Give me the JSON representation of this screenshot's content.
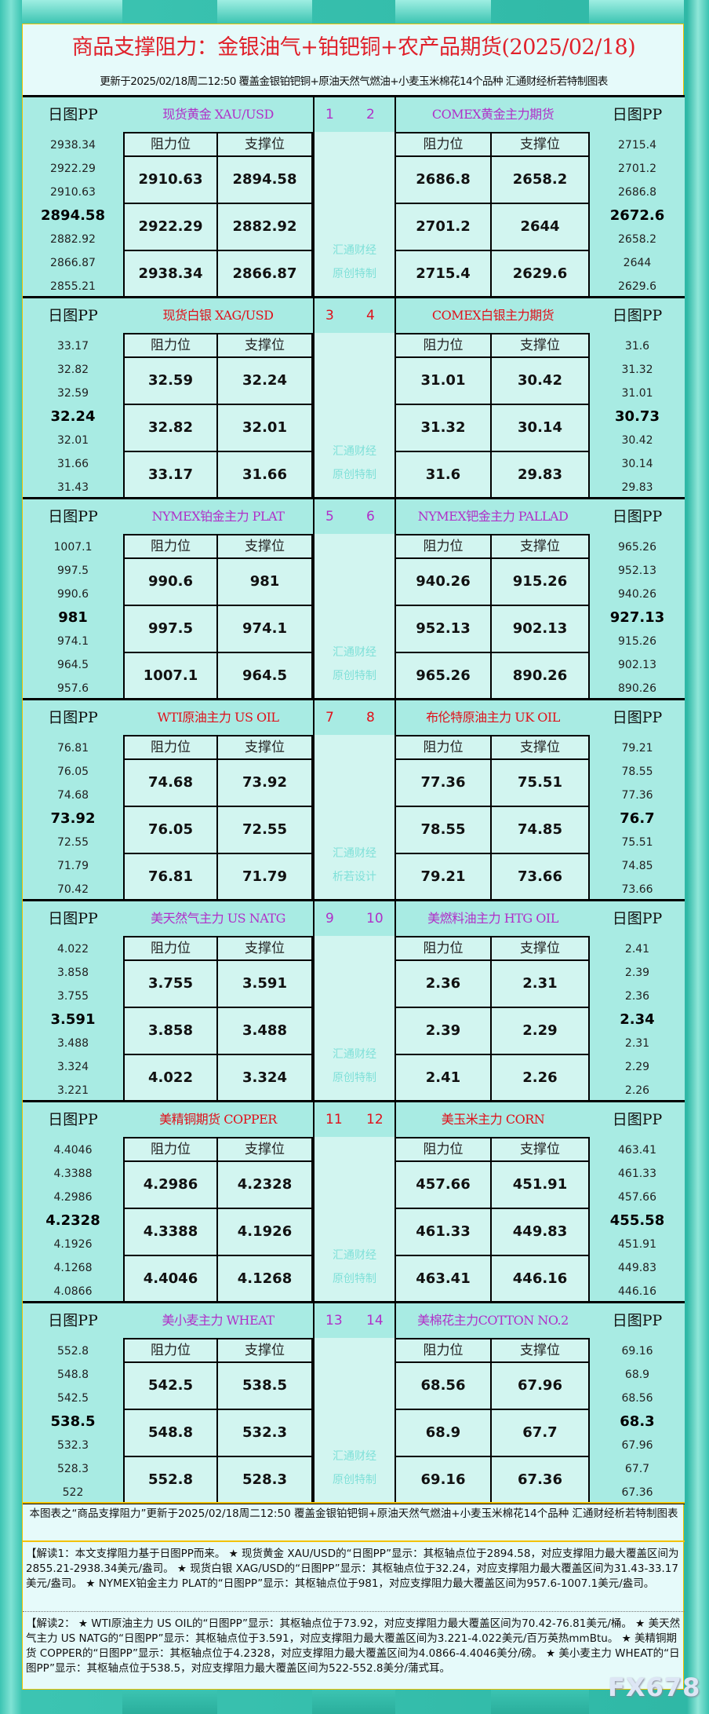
{
  "header": {
    "title": "商品支撑阻力：金银油气+铂钯铜+农产品期货(2025/02/18)",
    "subtitle": "更新于2025/02/18周二12:50  覆盖金银铂钯铜+原油天然气燃油+小麦玉米棉花14个品种  汇通财经析若特制图表"
  },
  "labels": {
    "pp": "日图PP",
    "resist": "阻力位",
    "support": "支撑位"
  },
  "colors": {
    "red": "#e0101a",
    "purple": "#b030c8",
    "watermark": "#7fe0d8"
  },
  "blocks": [
    {
      "color": "purple",
      "watermark": [
        "汇通财经",
        "原创特制"
      ],
      "left": {
        "num": "1",
        "name": "现货黄金 XAU/USD",
        "pp": [
          "2938.34",
          "2922.29",
          "2910.63",
          "2894.58",
          "2882.92",
          "2866.87",
          "2855.21"
        ],
        "rows": [
          [
            "2910.63",
            "2894.58"
          ],
          [
            "2922.29",
            "2882.92"
          ],
          [
            "2938.34",
            "2866.87"
          ]
        ]
      },
      "right": {
        "num": "2",
        "name": "COMEX黄金主力期货",
        "pp": [
          "2715.4",
          "2701.2",
          "2686.8",
          "2672.6",
          "2658.2",
          "2644",
          "2629.6"
        ],
        "rows": [
          [
            "2686.8",
            "2658.2"
          ],
          [
            "2701.2",
            "2644"
          ],
          [
            "2715.4",
            "2629.6"
          ]
        ]
      }
    },
    {
      "color": "red",
      "watermark": [
        "汇通财经",
        "原创特制"
      ],
      "left": {
        "num": "3",
        "name": "现货白银 XAG/USD",
        "pp": [
          "33.17",
          "32.82",
          "32.59",
          "32.24",
          "32.01",
          "31.66",
          "31.43"
        ],
        "rows": [
          [
            "32.59",
            "32.24"
          ],
          [
            "32.82",
            "32.01"
          ],
          [
            "33.17",
            "31.66"
          ]
        ]
      },
      "right": {
        "num": "4",
        "name": "COMEX白银主力期货",
        "pp": [
          "31.6",
          "31.32",
          "31.01",
          "30.73",
          "30.42",
          "30.14",
          "29.83"
        ],
        "rows": [
          [
            "31.01",
            "30.42"
          ],
          [
            "31.32",
            "30.14"
          ],
          [
            "31.6",
            "29.83"
          ]
        ]
      }
    },
    {
      "color": "purple",
      "watermark": [
        "汇通财经",
        "原创特制"
      ],
      "left": {
        "num": "5",
        "name": "NYMEX铂金主力 PLAT",
        "pp": [
          "1007.1",
          "997.5",
          "990.6",
          "981",
          "974.1",
          "964.5",
          "957.6"
        ],
        "rows": [
          [
            "990.6",
            "981"
          ],
          [
            "997.5",
            "974.1"
          ],
          [
            "1007.1",
            "964.5"
          ]
        ]
      },
      "right": {
        "num": "6",
        "name": "NYMEX钯金主力 PALLAD",
        "pp": [
          "965.26",
          "952.13",
          "940.26",
          "927.13",
          "915.26",
          "902.13",
          "890.26"
        ],
        "rows": [
          [
            "940.26",
            "915.26"
          ],
          [
            "952.13",
            "902.13"
          ],
          [
            "965.26",
            "890.26"
          ]
        ]
      }
    },
    {
      "color": "red",
      "watermark": [
        "汇通财经",
        "析若设计"
      ],
      "left": {
        "num": "7",
        "name": "WTI原油主力 US OIL",
        "pp": [
          "76.81",
          "76.05",
          "74.68",
          "73.92",
          "72.55",
          "71.79",
          "70.42"
        ],
        "rows": [
          [
            "74.68",
            "73.92"
          ],
          [
            "76.05",
            "72.55"
          ],
          [
            "76.81",
            "71.79"
          ]
        ]
      },
      "right": {
        "num": "8",
        "name": "布伦特原油主力 UK OIL",
        "pp": [
          "79.21",
          "78.55",
          "77.36",
          "76.7",
          "75.51",
          "74.85",
          "73.66"
        ],
        "rows": [
          [
            "77.36",
            "75.51"
          ],
          [
            "78.55",
            "74.85"
          ],
          [
            "79.21",
            "73.66"
          ]
        ]
      }
    },
    {
      "color": "purple",
      "watermark": [
        "汇通财经",
        "原创特制"
      ],
      "left": {
        "num": "9",
        "name": "美天然气主力 US NATG",
        "pp": [
          "4.022",
          "3.858",
          "3.755",
          "3.591",
          "3.488",
          "3.324",
          "3.221"
        ],
        "rows": [
          [
            "3.755",
            "3.591"
          ],
          [
            "3.858",
            "3.488"
          ],
          [
            "4.022",
            "3.324"
          ]
        ]
      },
      "right": {
        "num": "10",
        "name": "美燃料油主力 HTG OIL",
        "pp": [
          "2.41",
          "2.39",
          "2.36",
          "2.34",
          "2.31",
          "2.29",
          "2.26"
        ],
        "rows": [
          [
            "2.36",
            "2.31"
          ],
          [
            "2.39",
            "2.29"
          ],
          [
            "2.41",
            "2.26"
          ]
        ]
      }
    },
    {
      "color": "red",
      "watermark": [
        "汇通财经",
        "原创特制"
      ],
      "left": {
        "num": "11",
        "name": "美精铜期货 COPPER",
        "pp": [
          "4.4046",
          "4.3388",
          "4.2986",
          "4.2328",
          "4.1926",
          "4.1268",
          "4.0866"
        ],
        "rows": [
          [
            "4.2986",
            "4.2328"
          ],
          [
            "4.3388",
            "4.1926"
          ],
          [
            "4.4046",
            "4.1268"
          ]
        ]
      },
      "right": {
        "num": "12",
        "name": "美玉米主力 CORN",
        "pp": [
          "463.41",
          "461.33",
          "457.66",
          "455.58",
          "451.91",
          "449.83",
          "446.16"
        ],
        "rows": [
          [
            "457.66",
            "451.91"
          ],
          [
            "461.33",
            "449.83"
          ],
          [
            "463.41",
            "446.16"
          ]
        ]
      }
    },
    {
      "color": "purple",
      "watermark": [
        "汇通财经",
        "原创特制"
      ],
      "left": {
        "num": "13",
        "name": "美小麦主力 WHEAT",
        "pp": [
          "552.8",
          "548.8",
          "542.5",
          "538.5",
          "532.3",
          "528.3",
          "522"
        ],
        "rows": [
          [
            "542.5",
            "538.5"
          ],
          [
            "548.8",
            "532.3"
          ],
          [
            "552.8",
            "528.3"
          ]
        ]
      },
      "right": {
        "num": "14",
        "name": "美棉花主力COTTON NO.2",
        "pp": [
          "69.16",
          "68.9",
          "68.56",
          "68.3",
          "67.96",
          "67.7",
          "67.36"
        ],
        "rows": [
          [
            "68.56",
            "67.96"
          ],
          [
            "68.9",
            "67.7"
          ],
          [
            "69.16",
            "67.36"
          ]
        ]
      }
    }
  ],
  "footer": {
    "note": "本图表之“商品支撑阻力”更新于2025/02/18周二12:50 覆盖金银铂钯铜+原油天然气燃油+小麦玉米棉花14个品种 汇通财经析若特制图表",
    "explain1": "【解读1：本文支撑阻力基于日图PP而来。 ★ 现货黄金 XAU/USD的“日图PP”显示：其枢轴点位于2894.58，对应支撑阻力最大覆盖区间为2855.21-2938.34美元/盎司。 ★ 现货白银 XAG/USD的“日图PP”显示：其枢轴点位于32.24，对应支撑阻力最大覆盖区间为31.43-33.17美元/盎司。 ★ NYMEX铂金主力 PLAT的“日图PP”显示：其枢轴点位于981，对应支撑阻力最大覆盖区间为957.6-1007.1美元/盎司。",
    "explain2": "【解读2： ★ WTI原油主力 US OIL的“日图PP”显示：其枢轴点位于73.92，对应支撑阻力最大覆盖区间为70.42-76.81美元/桶。 ★ 美天然气主力 US NATG的“日图PP”显示：其枢轴点位于3.591，对应支撑阻力最大覆盖区间为3.221-4.022美元/百万英热mmBtu。 ★ 美精铜期货 COPPER的“日图PP”显示：其枢轴点位于4.2328，对应支撑阻力最大覆盖区间为4.0866-4.4046美分/磅。 ★ 美小麦主力 WHEAT的“日图PP”显示：其枢轴点位于538.5，对应支撑阻力最大覆盖区间为522-552.8美分/蒲式耳。",
    "logo": "FX678"
  }
}
